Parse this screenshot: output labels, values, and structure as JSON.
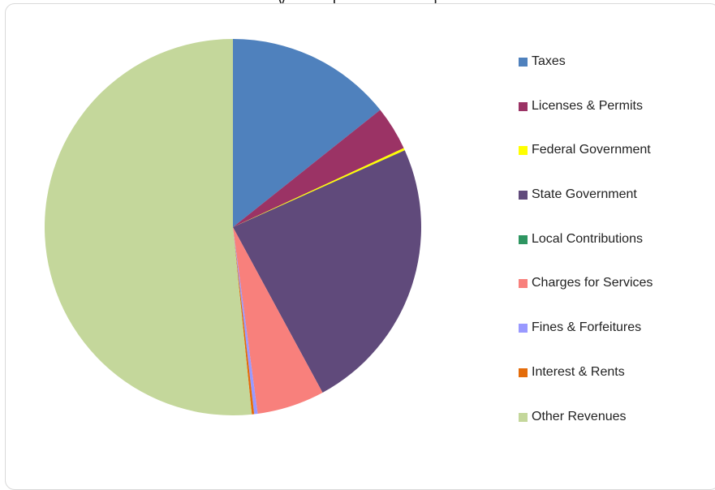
{
  "page": {
    "title_fragment": "y ... ... . (.. ...  ... . ..  .  ... )"
  },
  "chart_data": {
    "type": "pie",
    "title": "",
    "legend_position": "right",
    "categories": [
      "Taxes",
      "Licenses & Permits",
      "Federal Government",
      "State Government",
      "Local Contributions",
      "Charges for Services",
      "Fines & Forfeitures",
      "Interest & Rents",
      "Other Revenues"
    ],
    "values": [
      14.3,
      3.8,
      0.2,
      23.8,
      0.0,
      5.8,
      0.3,
      0.2,
      51.6
    ],
    "colors": [
      "#4f81bd",
      "#9b3365",
      "#ffff00",
      "#604a7b",
      "#2e9561",
      "#f8807c",
      "#9999ff",
      "#e46c0a",
      "#c4d79b"
    ]
  }
}
